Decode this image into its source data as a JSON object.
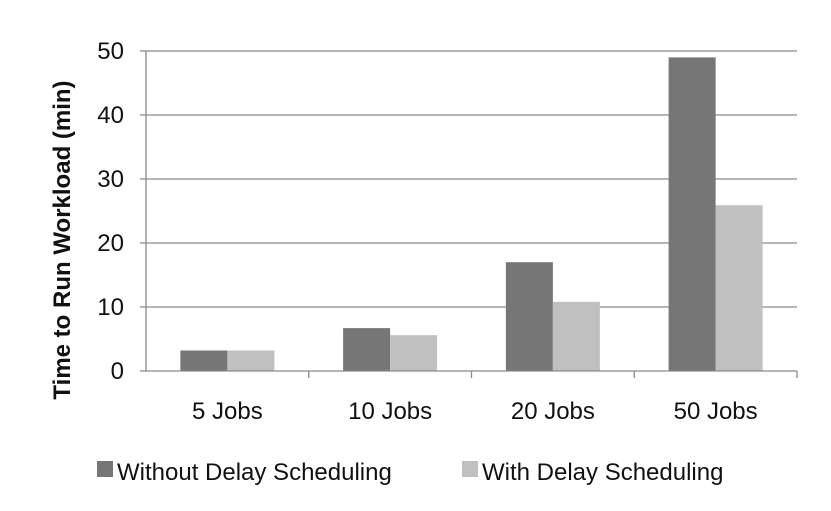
{
  "chart_data": {
    "type": "bar",
    "categories": [
      "5 Jobs",
      "10 Jobs",
      "20 Jobs",
      "50 Jobs"
    ],
    "series": [
      {
        "name": "Without Delay Scheduling",
        "values": [
          3.2,
          6.7,
          17.0,
          49.0
        ],
        "color": "#767676"
      },
      {
        "name": "With Delay Scheduling",
        "values": [
          3.2,
          5.6,
          10.8,
          25.9
        ],
        "color": "#c0c0c0"
      }
    ],
    "title": "",
    "xlabel": "",
    "ylabel": "Time to Run Workload (min)",
    "ylim": [
      0,
      50
    ],
    "yticks": [
      "0",
      "10",
      "20",
      "30",
      "40",
      "50"
    ],
    "grid": true,
    "legend_position": "bottom"
  }
}
